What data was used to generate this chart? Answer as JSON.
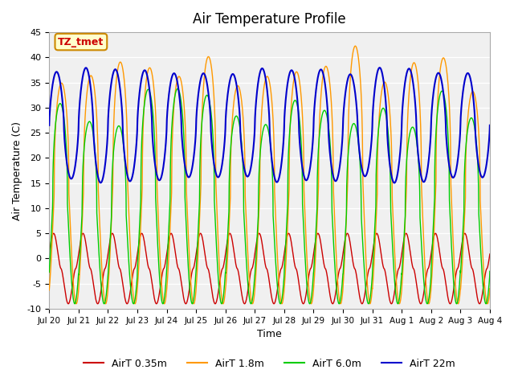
{
  "title": "Air Temperature Profile",
  "xlabel": "Time",
  "ylabel": "Air Temperature (C)",
  "ylim": [
    -10,
    45
  ],
  "xlim": [
    0,
    15
  ],
  "tick_labels": [
    "Jul 20",
    "Jul 21",
    "Jul 22",
    "Jul 23",
    "Jul 24",
    "Jul 25",
    "Jul 26",
    "Jul 27",
    "Jul 28",
    "Jul 29",
    "Jul 30",
    "Jul 31",
    "Aug 1",
    "Aug 2",
    "Aug 3",
    "Aug 4"
  ],
  "colors": {
    "AirT 0.35m": "#cc0000",
    "AirT 1.8m": "#ff9900",
    "AirT 6.0m": "#00cc00",
    "AirT 22m": "#0000cc"
  },
  "annotation_text": "TZ_tmet",
  "annotation_facecolor": "#ffffcc",
  "annotation_edgecolor": "#cc8800",
  "annotation_textcolor": "#cc0000",
  "plot_bg_color": "#f0f0f0",
  "yticks": [
    -10,
    -5,
    0,
    5,
    10,
    15,
    20,
    25,
    30,
    35,
    40,
    45
  ],
  "legend_labels": [
    "AirT 0.35m",
    "AirT 1.8m",
    "AirT 6.0m",
    "AirT 22m"
  ]
}
